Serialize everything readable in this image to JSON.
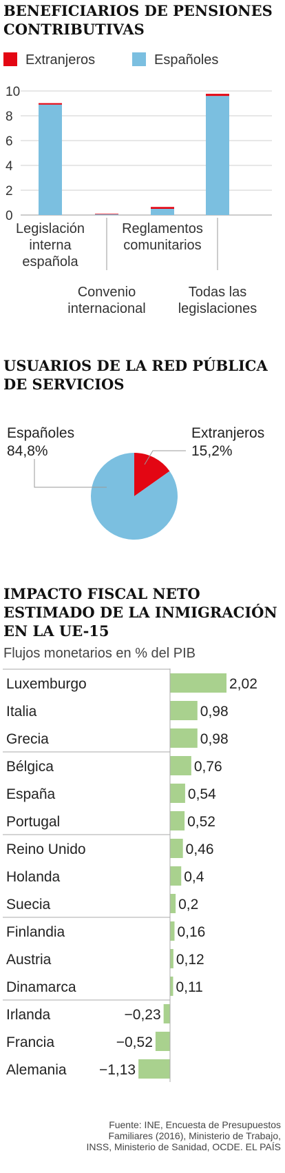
{
  "colors": {
    "extranjeros": "#e30613",
    "espanoles": "#7bbfe0",
    "bars_positive": "#a9d18e",
    "bars_negative": "#a9d18e",
    "text": "#222222",
    "grid": "#bbbbbb"
  },
  "section1": {
    "title_lines": [
      "BENEFICIARIOS DE PENSIONES",
      "CONTRIBUTIVAS"
    ],
    "legend": [
      {
        "name": "Extranjeros",
        "color": "#e30613"
      },
      {
        "name": "Españoles",
        "color": "#7bbfe0"
      }
    ]
  },
  "section2": {
    "title_lines": [
      "USUARIOS DE LA RED PÚBLICA",
      "DE SERVICIOS"
    ],
    "label_left_name": "Españoles",
    "label_left_value": "84,8%",
    "label_right_name": "Extranjeros",
    "label_right_value": "15,2%"
  },
  "section3": {
    "title_lines": [
      "IMPACTO FISCAL NETO",
      "ESTIMADO DE LA INMIGRACIÓN",
      "EN LA UE-15"
    ],
    "subtitle": "Flujos monetarios en % del PIB"
  },
  "source": {
    "lines": [
      "Fuente: INE, Encuesta de Presupuestos",
      "Familiares (2016), Ministerio de Trabajo,",
      "INSS, Ministerio de Sanidad, OCDE.     EL PAÍS"
    ]
  },
  "chart_data": [
    {
      "type": "bar",
      "stacked": true,
      "title": "BENEFICIARIOS DE PENSIONES CONTRIBUTIVAS",
      "categories": [
        [
          "Legislación",
          "interna",
          "española"
        ],
        [
          "Convenio",
          "internacional"
        ],
        [
          "Reglamentos",
          "comunitarios"
        ],
        [
          "Todas las",
          "legislaciones"
        ]
      ],
      "series": [
        {
          "name": "Españoles",
          "color": "#7bbfe0",
          "values": [
            8.9,
            0.08,
            0.5,
            9.6
          ]
        },
        {
          "name": "Extranjeros",
          "color": "#e30613",
          "values": [
            0.12,
            0.02,
            0.15,
            0.17
          ]
        }
      ],
      "ylim": [
        0,
        10
      ],
      "yticks": [
        0,
        2,
        4,
        6,
        8,
        10
      ],
      "grid": true
    },
    {
      "type": "pie",
      "title": "USUARIOS DE LA RED PÚBLICA DE SERVICIOS",
      "slices": [
        {
          "name": "Extranjeros",
          "value": 15.2,
          "color": "#e30613"
        },
        {
          "name": "Españoles",
          "value": 84.8,
          "color": "#7bbfe0"
        }
      ]
    },
    {
      "type": "bar",
      "orientation": "horizontal",
      "title": "IMPACTO FISCAL NETO ESTIMADO DE LA INMIGRACIÓN EN LA UE-15",
      "subtitle": "Flujos monetarios en % del PIB",
      "categories": [
        "Luxemburgo",
        "Italia",
        "Grecia",
        "Bélgica",
        "España",
        "Portugal",
        "Reino Unido",
        "Holanda",
        "Suecia",
        "Finlandia",
        "Austria",
        "Dinamarca",
        "Irlanda",
        "Francia",
        "Alemania"
      ],
      "values": [
        2.02,
        0.98,
        0.98,
        0.76,
        0.54,
        0.52,
        0.46,
        0.4,
        0.2,
        0.16,
        0.12,
        0.11,
        -0.23,
        -0.52,
        -1.13
      ],
      "labels": [
        "2,02",
        "0,98",
        "0,98",
        "0,76",
        "0,54",
        "0,52",
        "0,46",
        "0,4",
        "0,2",
        "0,16",
        "0,12",
        "0,11",
        "−0,23",
        "−0,52",
        "−1,13"
      ],
      "color": "#a9d18e"
    }
  ]
}
